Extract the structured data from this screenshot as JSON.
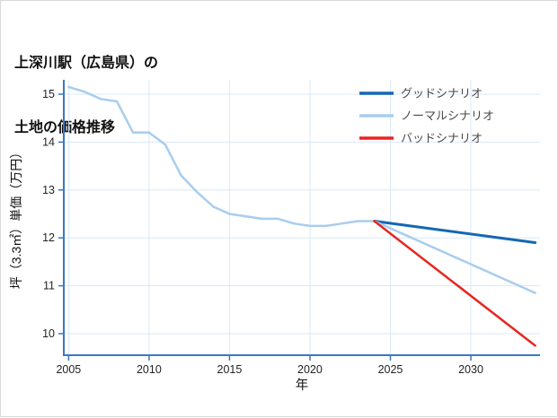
{
  "title": {
    "line1": "上深川駅（広島県）の",
    "line2": "土地の価格推移"
  },
  "chart_data": {
    "type": "line",
    "title": "上深川駅（広島県）の土地の価格推移",
    "xlabel": "年",
    "ylabel": "坪（3.3㎡）単価（万円）",
    "xlim": [
      2004.7,
      2034.3
    ],
    "ylim": [
      9.55,
      15.3
    ],
    "x_ticks": [
      2005,
      2010,
      2015,
      2020,
      2025,
      2030
    ],
    "y_ticks": [
      10,
      11,
      12,
      13,
      14,
      15
    ],
    "grid": true,
    "legend_position": "top-right",
    "colors": {
      "axis": "#3c78c0",
      "grid": "#d9e8f8",
      "tick_label": "#222222",
      "legend_text": "#4a4a4a"
    },
    "series": [
      {
        "key": "history",
        "name": "history",
        "color": "#a8cdee",
        "width": 2.5,
        "x": [
          2005,
          2006,
          2007,
          2008,
          2009,
          2010,
          2011,
          2012,
          2013,
          2014,
          2015,
          2016,
          2017,
          2018,
          2019,
          2020,
          2021,
          2022,
          2023,
          2024
        ],
        "y": [
          15.15,
          15.05,
          14.9,
          14.85,
          14.2,
          14.2,
          13.95,
          13.3,
          12.95,
          12.65,
          12.5,
          12.45,
          12.4,
          12.4,
          12.3,
          12.25,
          12.25,
          12.3,
          12.35,
          12.35
        ]
      },
      {
        "key": "good",
        "name": "グッドシナリオ",
        "color": "#1467b4",
        "width": 3,
        "x": [
          2024,
          2034
        ],
        "y": [
          12.35,
          11.9
        ]
      },
      {
        "key": "normal",
        "name": "ノーマルシナリオ",
        "color": "#a8cdee",
        "width": 2.5,
        "x": [
          2024,
          2034
        ],
        "y": [
          12.35,
          10.85
        ]
      },
      {
        "key": "bad",
        "name": "バッドシナリオ",
        "color": "#e8251f",
        "width": 2.5,
        "x": [
          2024,
          2034
        ],
        "y": [
          12.35,
          9.75
        ]
      }
    ],
    "legend": [
      {
        "key": "good",
        "label": "グッドシナリオ",
        "color": "#1467b4"
      },
      {
        "key": "normal",
        "label": "ノーマルシナリオ",
        "color": "#a8cdee"
      },
      {
        "key": "bad",
        "label": "バッドシナリオ",
        "color": "#e8251f"
      }
    ]
  }
}
